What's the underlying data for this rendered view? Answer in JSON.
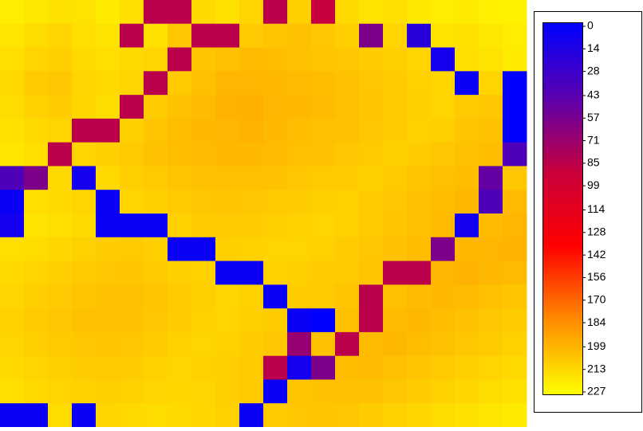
{
  "chart_data": {
    "type": "heatmap",
    "zlim": [
      0,
      227
    ],
    "colorscale": [
      "#0000ff",
      "#5a00b0",
      "#c8003c",
      "#ff0000",
      "#ff8c00",
      "#ffff00"
    ],
    "colorbar_ticks": [
      0,
      14,
      28,
      43,
      57,
      71,
      85,
      99,
      114,
      128,
      142,
      156,
      170,
      184,
      199,
      213,
      227
    ],
    "z": [
      [
        220,
        218,
        215,
        216,
        219,
        214,
        85,
        85,
        212,
        215,
        210,
        85,
        208,
        90,
        212,
        216,
        214,
        218,
        220,
        219,
        221,
        222
      ],
      [
        217,
        213,
        210,
        214,
        216,
        85,
        215,
        205,
        85,
        85,
        206,
        204,
        203,
        205,
        208,
        60,
        210,
        20,
        216,
        215,
        218,
        220
      ],
      [
        214,
        210,
        208,
        212,
        214,
        212,
        210,
        85,
        204,
        202,
        200,
        201,
        203,
        204,
        205,
        207,
        208,
        210,
        10,
        214,
        216,
        219
      ],
      [
        212,
        207,
        205,
        210,
        212,
        210,
        85,
        206,
        202,
        198,
        198,
        199,
        200,
        201,
        203,
        205,
        207,
        209,
        211,
        5,
        210,
        0
      ],
      [
        213,
        209,
        207,
        211,
        213,
        85,
        207,
        203,
        200,
        197,
        196,
        198,
        199,
        200,
        202,
        204,
        206,
        208,
        210,
        206,
        205,
        0
      ],
      [
        215,
        212,
        210,
        85,
        85,
        208,
        204,
        201,
        199,
        198,
        197,
        199,
        201,
        202,
        203,
        205,
        207,
        209,
        208,
        204,
        203,
        0
      ],
      [
        217,
        214,
        85,
        210,
        208,
        206,
        203,
        201,
        200,
        199,
        199,
        200,
        202,
        203,
        205,
        206,
        208,
        207,
        205,
        203,
        201,
        40
      ],
      [
        40,
        60,
        212,
        10,
        212,
        208,
        206,
        204,
        203,
        202,
        202,
        203,
        205,
        206,
        207,
        208,
        206,
        204,
        202,
        201,
        50,
        205
      ],
      [
        5,
        214,
        212,
        210,
        5,
        210,
        208,
        206,
        205,
        204,
        205,
        206,
        207,
        208,
        209,
        207,
        205,
        203,
        201,
        199,
        40,
        200
      ],
      [
        10,
        216,
        214,
        212,
        5,
        5,
        5,
        209,
        207,
        206,
        207,
        208,
        209,
        210,
        209,
        206,
        204,
        202,
        200,
        10,
        200,
        198
      ],
      [
        214,
        213,
        211,
        209,
        207,
        206,
        208,
        5,
        5,
        208,
        209,
        210,
        210,
        209,
        207,
        205,
        203,
        201,
        60,
        199,
        198,
        197
      ],
      [
        212,
        210,
        208,
        206,
        205,
        204,
        206,
        208,
        209,
        5,
        5,
        209,
        208,
        207,
        206,
        204,
        85,
        85,
        198,
        197,
        199,
        200
      ],
      [
        210,
        208,
        206,
        204,
        203,
        202,
        204,
        206,
        208,
        210,
        209,
        5,
        207,
        206,
        204,
        85,
        202,
        200,
        199,
        200,
        202,
        204
      ],
      [
        209,
        207,
        205,
        203,
        202,
        203,
        205,
        207,
        209,
        210,
        208,
        207,
        5,
        0,
        203,
        85,
        200,
        199,
        201,
        203,
        205,
        207
      ],
      [
        210,
        208,
        206,
        205,
        204,
        205,
        207,
        209,
        210,
        209,
        207,
        205,
        70,
        203,
        85,
        200,
        199,
        201,
        203,
        205,
        207,
        209
      ],
      [
        212,
        210,
        208,
        207,
        206,
        207,
        209,
        210,
        209,
        208,
        206,
        85,
        10,
        60,
        201,
        200,
        202,
        204,
        206,
        208,
        210,
        212
      ],
      [
        214,
        212,
        210,
        209,
        208,
        209,
        210,
        211,
        210,
        208,
        206,
        5,
        204,
        203,
        202,
        203,
        205,
        207,
        209,
        211,
        213,
        215
      ],
      [
        5,
        5,
        213,
        5,
        211,
        212,
        213,
        212,
        211,
        209,
        5,
        206,
        205,
        204,
        205,
        207,
        209,
        211,
        213,
        215,
        217,
        219
      ]
    ]
  }
}
